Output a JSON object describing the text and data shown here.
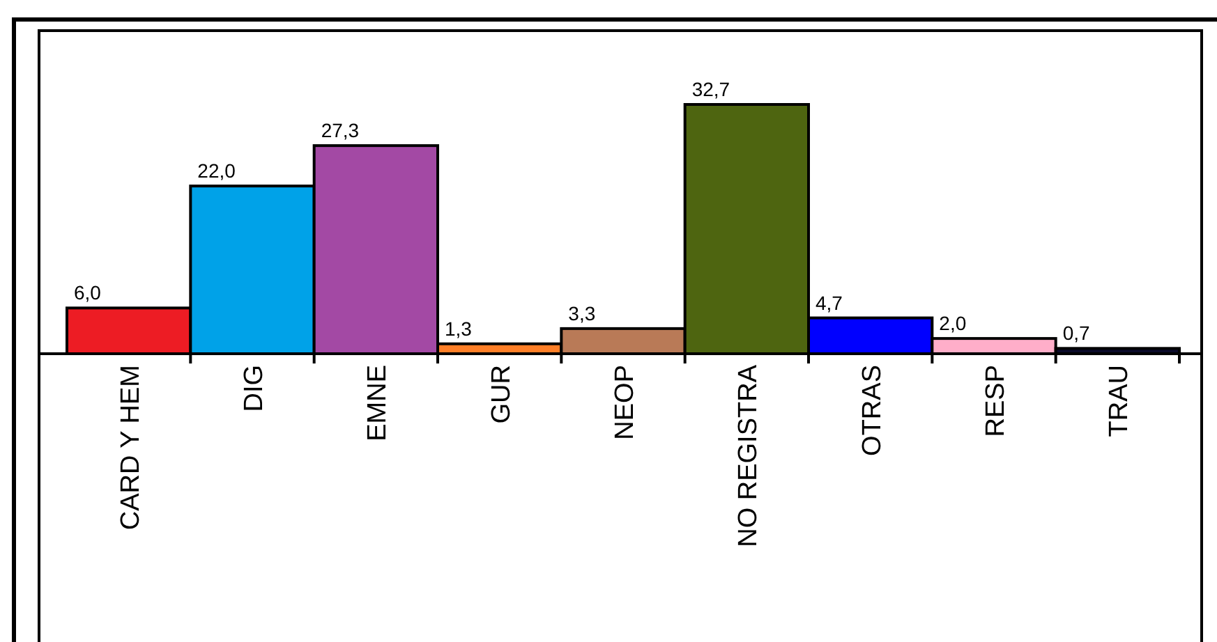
{
  "chart_data": {
    "type": "bar",
    "categories": [
      "CARD Y HEM",
      "DIG",
      "EMNE",
      "GUR",
      "NEOP",
      "NO REGISTRA",
      "OTRAS",
      "RESP",
      "TRAU"
    ],
    "values": [
      6.0,
      22.0,
      27.3,
      1.3,
      3.3,
      32.7,
      4.7,
      2.0,
      0.7
    ],
    "colors": [
      "#ed1c24",
      "#00a2e8",
      "#a349a4",
      "#ff7f27",
      "#b97a57",
      "#4e6510",
      "#0000ff",
      "#ffaec9",
      "#0a0a2a"
    ],
    "value_labels": [
      "6,0",
      "22,0",
      "27,3",
      "1,3",
      "3,3",
      "32,7",
      "4,7",
      "2,0",
      "0,7"
    ]
  }
}
